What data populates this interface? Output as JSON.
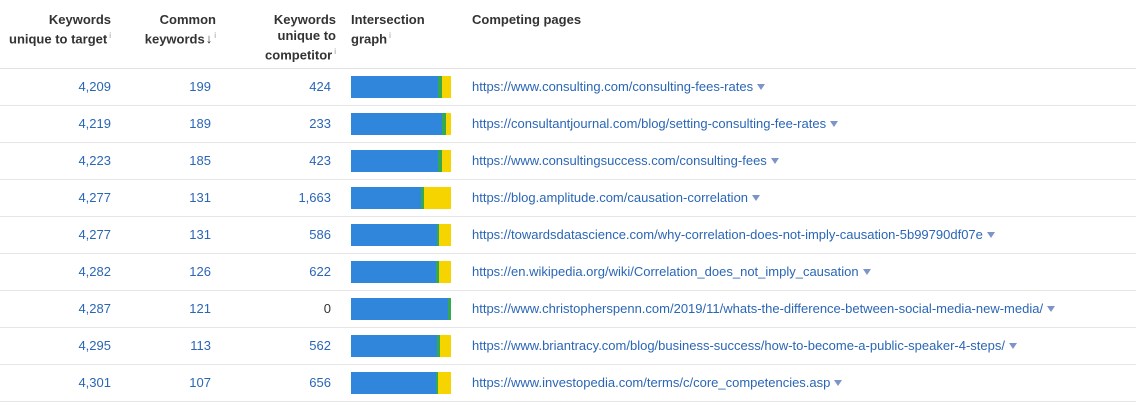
{
  "table": {
    "headers": {
      "unique_to_target": {
        "line1": "Keywords",
        "line2": "unique to target",
        "info": "i"
      },
      "common": {
        "line1": "Common",
        "line2": "keywords",
        "sort_arrow": "↓",
        "info": "i"
      },
      "unique_to_competitor": {
        "line1": "Keywords",
        "line2": "unique to",
        "line3": "competitor",
        "info": "i"
      },
      "intersection": {
        "line1": "Intersection",
        "line2": "graph",
        "info": "i"
      },
      "competing_pages": {
        "line1": "Competing pages"
      }
    },
    "colors": {
      "unique_to_target": "#2f86db",
      "common": "#34a853",
      "unique_to_competitor": "#f5d400",
      "link": "#2a66b6"
    },
    "rows": [
      {
        "unique_to_target": "4,209",
        "common": "199",
        "unique_to_competitor": "424",
        "url": "https://www.consulting.com/consulting-fees-rates"
      },
      {
        "unique_to_target": "4,219",
        "common": "189",
        "unique_to_competitor": "233",
        "url": "https://consultantjournal.com/blog/setting-consulting-fee-rates"
      },
      {
        "unique_to_target": "4,223",
        "common": "185",
        "unique_to_competitor": "423",
        "url": "https://www.consultingsuccess.com/consulting-fees"
      },
      {
        "unique_to_target": "4,277",
        "common": "131",
        "unique_to_competitor": "1,663",
        "url": "https://blog.amplitude.com/causation-correlation"
      },
      {
        "unique_to_target": "4,277",
        "common": "131",
        "unique_to_competitor": "586",
        "url": "https://towardsdatascience.com/why-correlation-does-not-imply-causation-5b99790df07e"
      },
      {
        "unique_to_target": "4,282",
        "common": "126",
        "unique_to_competitor": "622",
        "url": "https://en.wikipedia.org/wiki/Correlation_does_not_imply_causation"
      },
      {
        "unique_to_target": "4,287",
        "common": "121",
        "unique_to_competitor": "0",
        "url": "https://www.christopherspenn.com/2019/11/whats-the-difference-between-social-media-new-media/"
      },
      {
        "unique_to_target": "4,295",
        "common": "113",
        "unique_to_competitor": "562",
        "url": "https://www.briantracy.com/blog/business-success/how-to-become-a-public-speaker-4-steps/"
      },
      {
        "unique_to_target": "4,301",
        "common": "107",
        "unique_to_competitor": "656",
        "url": "https://www.investopedia.com/terms/c/core_competencies.asp"
      }
    ]
  }
}
